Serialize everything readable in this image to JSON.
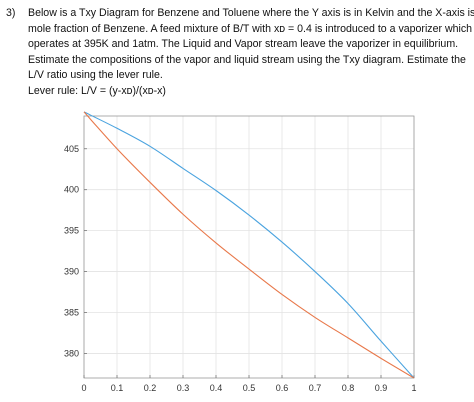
{
  "problem": {
    "number": "3)",
    "lines": [
      "Below is a Txy Diagram for Benzene and Toluene where the Y axis is in Kelvin and the X-axis is in",
      "mole fraction of Benzene. A feed mixture of B/T with xᴅ = 0.4 is introduced to a vaporizer which",
      "operates at 395K and 1atm. The Liquid and Vapor stream leave the vaporizer in equilibrium.",
      "Estimate the compositions of the vapor and liquid stream using the Txy diagram. Estimate the",
      "L/V ratio using the lever rule.",
      "Lever rule: L/V = (y-xᴅ)/(xᴅ-x)"
    ]
  },
  "chart_data": {
    "type": "line",
    "title": "",
    "xlabel": "",
    "ylabel": "",
    "xlim": [
      0,
      1
    ],
    "ylim": [
      377,
      409
    ],
    "xticks": [
      0,
      0.1,
      0.2,
      0.3,
      0.4,
      0.5,
      0.6,
      0.7,
      0.8,
      0.9,
      1
    ],
    "yticks": [
      380,
      385,
      390,
      395,
      400,
      405
    ],
    "grid": true,
    "series": [
      {
        "color": "#4aa3df",
        "x": [
          0,
          0.1,
          0.2,
          0.3,
          0.4,
          0.5,
          0.6,
          0.7,
          0.8,
          0.9,
          1
        ],
        "y": [
          409.5,
          407.5,
          405.3,
          402.6,
          399.9,
          396.9,
          393.6,
          390.0,
          386.1,
          381.5,
          377.0
        ]
      },
      {
        "color": "#e8784a",
        "x": [
          0,
          0.1,
          0.2,
          0.3,
          0.4,
          0.5,
          0.6,
          0.7,
          0.8,
          0.9,
          1
        ],
        "y": [
          409.5,
          405.0,
          400.9,
          397.0,
          393.5,
          390.3,
          387.2,
          384.4,
          381.9,
          379.4,
          377.0
        ]
      }
    ]
  }
}
